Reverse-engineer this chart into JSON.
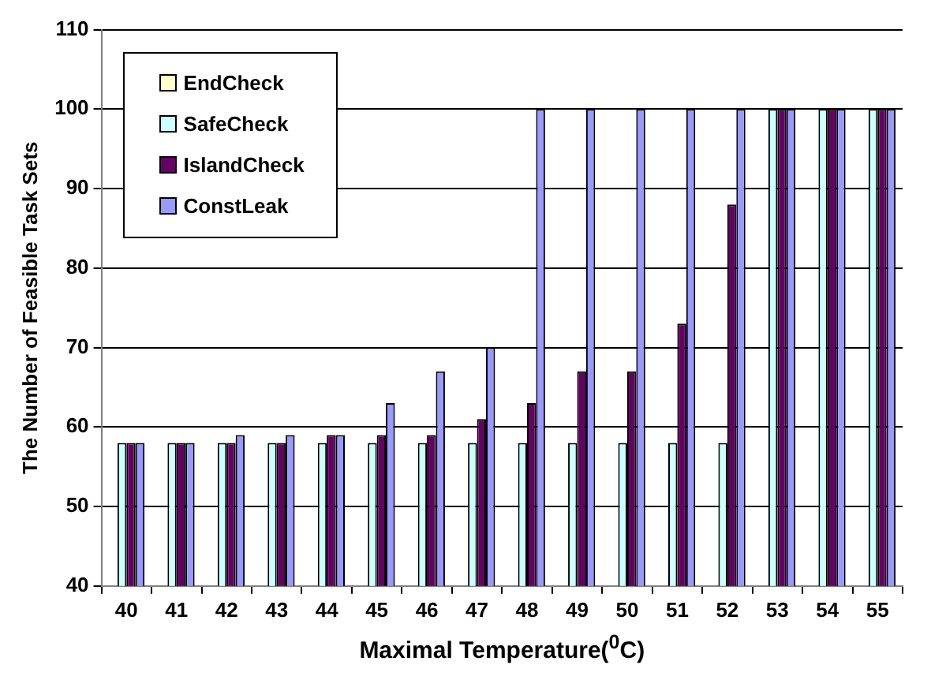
{
  "chart_data": {
    "type": "bar",
    "xlabel": "Maximal Temperature($^{0}$C)",
    "ylabel": "The Number of Feasible Task Sets",
    "categories": [
      "40",
      "41",
      "42",
      "43",
      "44",
      "45",
      "46",
      "47",
      "48",
      "49",
      "50",
      "51",
      "52",
      "53",
      "54",
      "55"
    ],
    "series": [
      {
        "name": "EndCheck",
        "color": "#ffffcc",
        "values": [
          null,
          null,
          null,
          null,
          null,
          null,
          null,
          null,
          null,
          null,
          null,
          null,
          null,
          null,
          null,
          null
        ]
      },
      {
        "name": "SafeCheck",
        "color": "#ccffff",
        "values": [
          58,
          58,
          58,
          58,
          58,
          58,
          58,
          58,
          58,
          58,
          58,
          58,
          58,
          100,
          100,
          100
        ]
      },
      {
        "name": "IslandCheck",
        "color": "#660066",
        "values": [
          58,
          58,
          58,
          58,
          59,
          59,
          59,
          61,
          63,
          67,
          67,
          73,
          88,
          100,
          100,
          100
        ]
      },
      {
        "name": "ConstLeak",
        "color": "#9999ff",
        "values": [
          58,
          58,
          59,
          59,
          59,
          63,
          67,
          70,
          100,
          100,
          100,
          100,
          100,
          100,
          100,
          100
        ]
      }
    ],
    "ylim": [
      40,
      110
    ],
    "yticks": [
      40,
      50,
      60,
      70,
      80,
      90,
      100,
      110
    ],
    "grid": "y",
    "legend": "top left"
  }
}
